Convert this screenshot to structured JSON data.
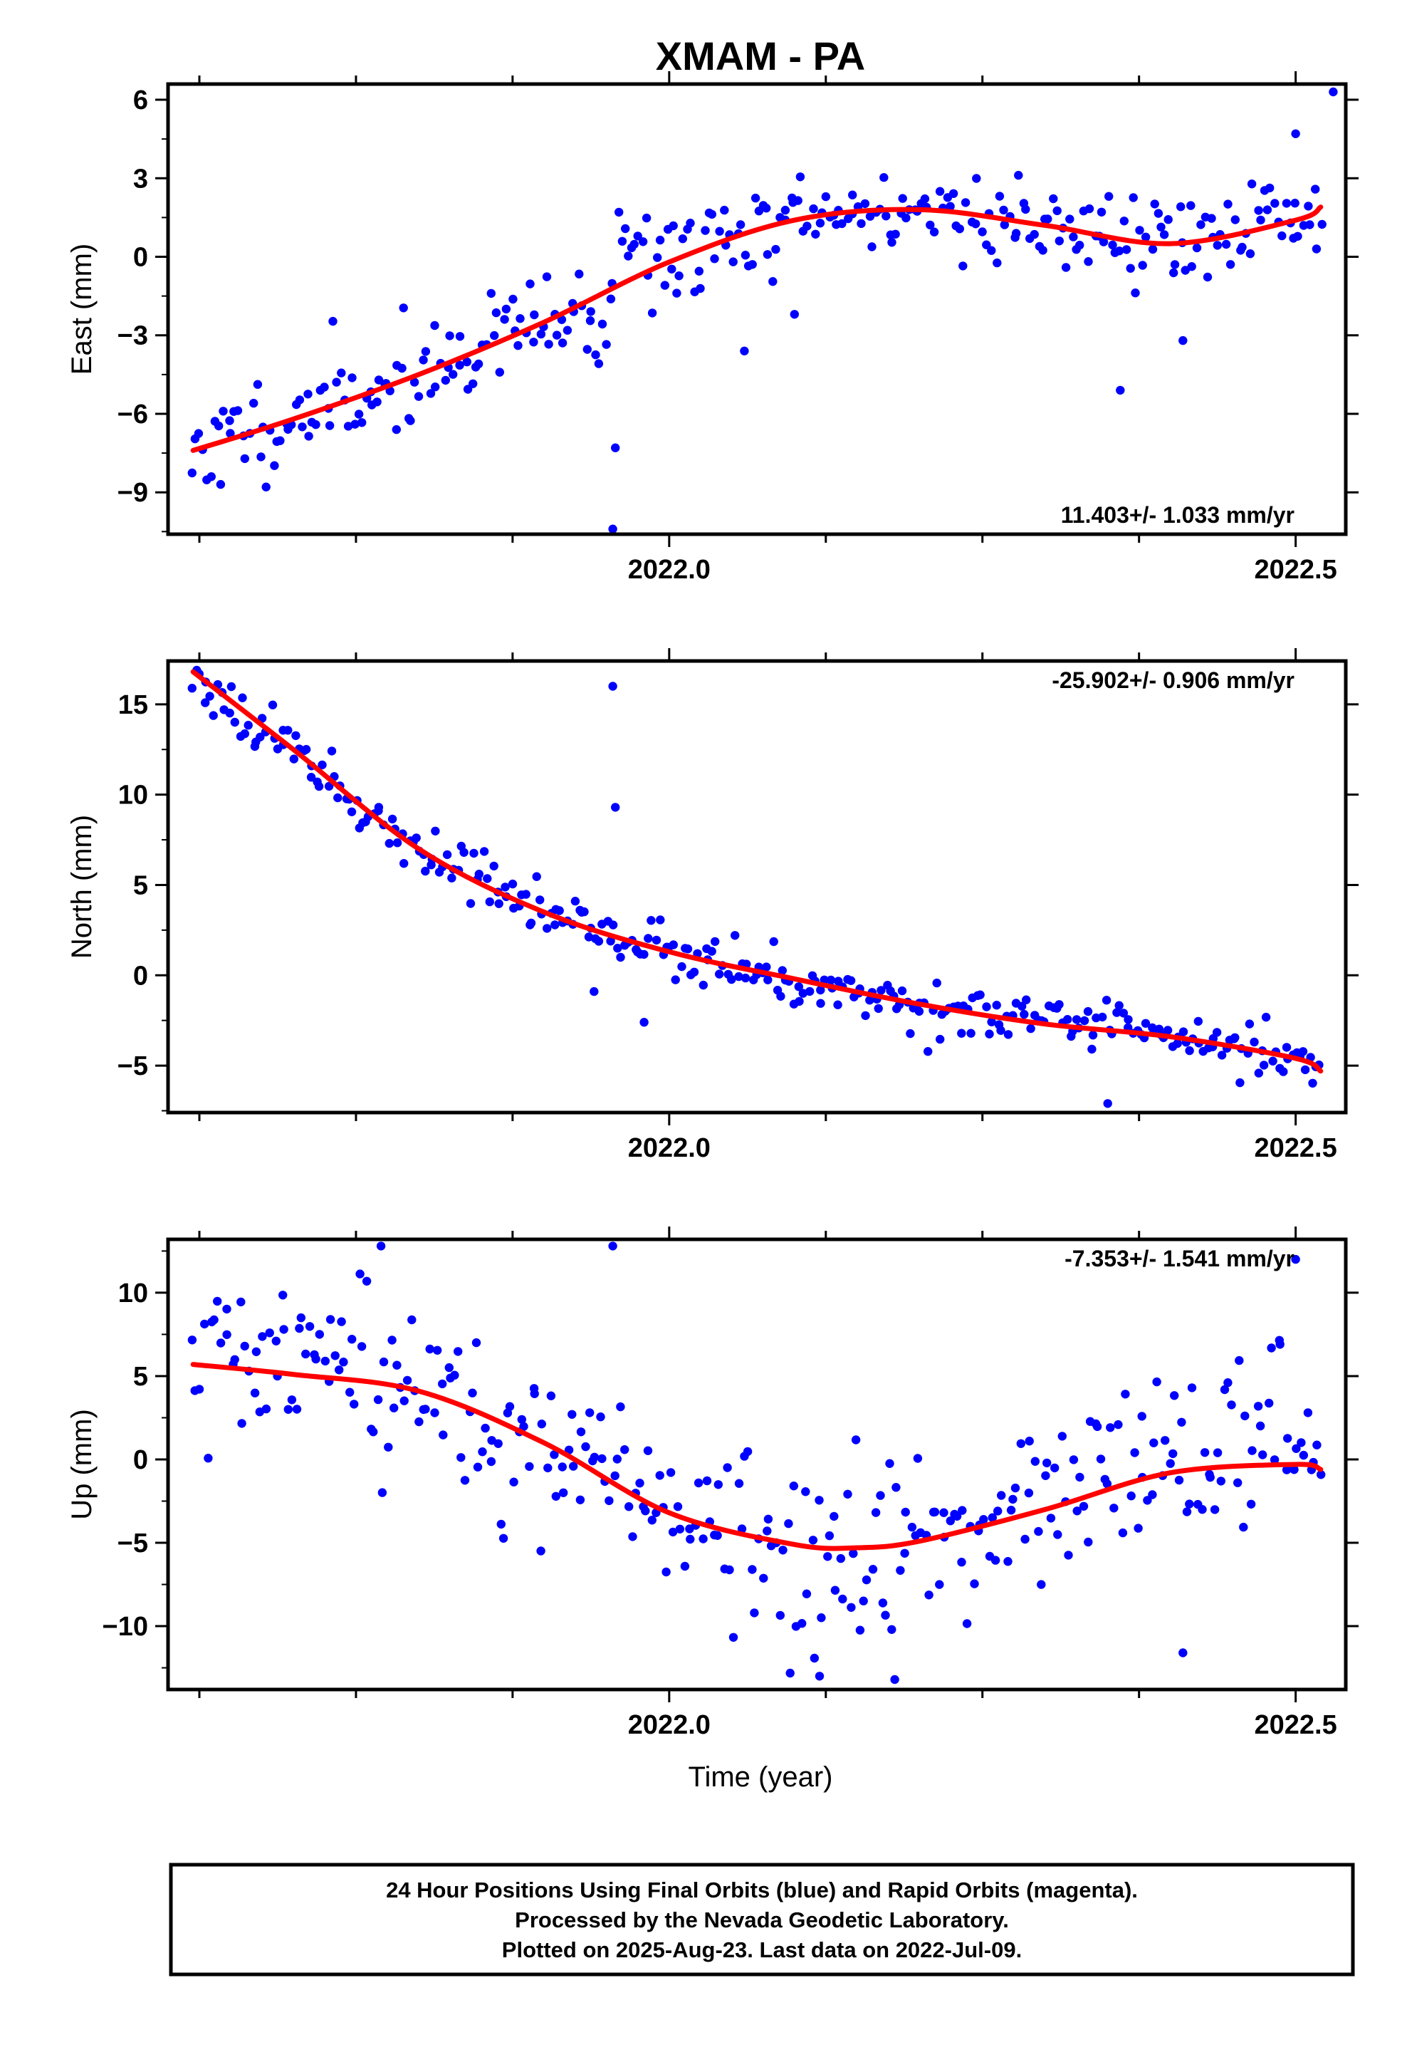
{
  "title": "XMAM - PA",
  "xlabel": "Time (year)",
  "colors": {
    "points": "#0000ff",
    "fit": "#ff0000",
    "frame": "#000000"
  },
  "caption": {
    "lines": [
      "24 Hour Positions Using Final Orbits (blue) and Rapid Orbits (magenta).",
      "Processed by the Nevada Geodetic Laboratory.",
      "Plotted on 2025-Aug-23. Last data on 2022-Jul-09."
    ]
  },
  "chart_data": [
    {
      "type": "scatter",
      "ylabel": "East (mm)",
      "rate_text": "11.403+/- 1.033 mm/yr",
      "rate_position": "bottom-right",
      "xlim": [
        2021.6,
        2022.54
      ],
      "ylim": [
        -10.6,
        6.6
      ],
      "yticks": [
        6,
        3,
        0,
        -3,
        -6,
        -9
      ],
      "ytick_labels": [
        "6",
        "3",
        "0",
        "−3",
        "−6",
        "−9"
      ],
      "xtick_labels": [
        {
          "value": 2022.0,
          "label": "2022.0"
        },
        {
          "value": 2022.5,
          "label": "2022.5"
        }
      ],
      "fit": {
        "x": [
          2021.62,
          2021.7,
          2021.8,
          2021.9,
          2022.0,
          2022.1,
          2022.2,
          2022.3,
          2022.4,
          2022.5,
          2022.52
        ],
        "y": [
          -7.4,
          -6.2,
          -4.5,
          -2.5,
          -0.2,
          1.4,
          1.8,
          1.2,
          0.5,
          1.4,
          1.9
        ]
      },
      "anchors": {
        "x": [
          2021.62,
          2021.7,
          2021.8,
          2021.9,
          2021.95,
          2021.96,
          2022.0,
          2022.1,
          2022.2,
          2022.3,
          2022.4,
          2022.5,
          2022.52
        ],
        "y": [
          -7.4,
          -6.2,
          -4.5,
          -2.5,
          -2.7,
          0.8,
          -0.2,
          1.4,
          1.8,
          1.2,
          0.5,
          1.4,
          1.9
        ]
      },
      "noise_sd": 0.9,
      "seed": 11,
      "outliers": [
        [
          2021.955,
          -10.4
        ],
        [
          2021.957,
          -7.3
        ],
        [
          2022.36,
          -5.1
        ],
        [
          2022.06,
          -3.6
        ],
        [
          2022.41,
          -3.2
        ],
        [
          2022.53,
          6.3
        ],
        [
          2022.5,
          4.7
        ],
        [
          2022.1,
          -2.2
        ]
      ]
    },
    {
      "type": "scatter",
      "ylabel": "North (mm)",
      "rate_text": "-25.902+/- 0.906 mm/yr",
      "rate_position": "top-right",
      "xlim": [
        2021.6,
        2022.54
      ],
      "ylim": [
        -7.6,
        17.4
      ],
      "yticks": [
        15,
        10,
        5,
        0,
        -5
      ],
      "ytick_labels": [
        "15",
        "10",
        "5",
        "0",
        "−5"
      ],
      "xtick_labels": [
        {
          "value": 2022.0,
          "label": "2022.0"
        },
        {
          "value": 2022.5,
          "label": "2022.5"
        }
      ],
      "fit": {
        "x": [
          2021.62,
          2021.7,
          2021.8,
          2021.9,
          2022.0,
          2022.1,
          2022.2,
          2022.3,
          2022.4,
          2022.5,
          2022.52
        ],
        "y": [
          16.8,
          12.5,
          7.0,
          3.5,
          1.3,
          -0.2,
          -1.6,
          -2.7,
          -3.4,
          -4.6,
          -5.3
        ]
      },
      "anchors": {
        "x": [
          2021.62,
          2021.7,
          2021.8,
          2021.9,
          2022.0,
          2022.1,
          2022.2,
          2022.3,
          2022.4,
          2022.5,
          2022.52
        ],
        "y": [
          16.8,
          12.5,
          7.0,
          3.5,
          1.3,
          -0.2,
          -1.6,
          -2.7,
          -3.4,
          -4.6,
          -5.3
        ]
      },
      "noise_sd": 0.7,
      "seed": 23,
      "outliers": [
        [
          2021.955,
          16.0
        ],
        [
          2021.957,
          9.3
        ],
        [
          2022.35,
          -7.1
        ],
        [
          2021.98,
          -2.6
        ],
        [
          2021.94,
          -0.9
        ]
      ]
    },
    {
      "type": "scatter",
      "ylabel": "Up (mm)",
      "rate_text": "-7.353+/- 1.541 mm/yr",
      "rate_position": "top-right",
      "xlim": [
        2021.6,
        2022.54
      ],
      "ylim": [
        -13.8,
        13.2
      ],
      "yticks": [
        10,
        5,
        0,
        -5,
        -10
      ],
      "ytick_labels": [
        "10",
        "5",
        "0",
        "−5",
        "−10"
      ],
      "xtick_labels": [
        {
          "value": 2022.0,
          "label": "2022.0"
        },
        {
          "value": 2022.5,
          "label": "2022.5"
        }
      ],
      "fit": {
        "x": [
          2021.62,
          2021.7,
          2021.8,
          2021.9,
          2022.0,
          2022.1,
          2022.15,
          2022.2,
          2022.3,
          2022.4,
          2022.5,
          2022.52
        ],
        "y": [
          5.7,
          5.1,
          4.1,
          1.0,
          -3.2,
          -5.1,
          -5.3,
          -4.9,
          -3.0,
          -0.8,
          -0.3,
          -0.6
        ]
      },
      "anchors": {
        "x": [
          2021.62,
          2021.7,
          2021.8,
          2021.9,
          2022.0,
          2022.1,
          2022.15,
          2022.2,
          2022.3,
          2022.4,
          2022.5,
          2022.52
        ],
        "y": [
          5.7,
          5.1,
          4.1,
          1.0,
          -3.2,
          -6.5,
          -7.0,
          -4.9,
          -3.0,
          0.5,
          1.5,
          -0.6
        ]
      },
      "noise_sd": 2.7,
      "seed": 37,
      "outliers": [
        [
          2021.955,
          12.8
        ],
        [
          2021.77,
          12.8
        ],
        [
          2022.5,
          12.0
        ],
        [
          2022.41,
          -11.6
        ],
        [
          2022.12,
          -13.0
        ],
        [
          2022.18,
          -13.2
        ]
      ]
    }
  ]
}
